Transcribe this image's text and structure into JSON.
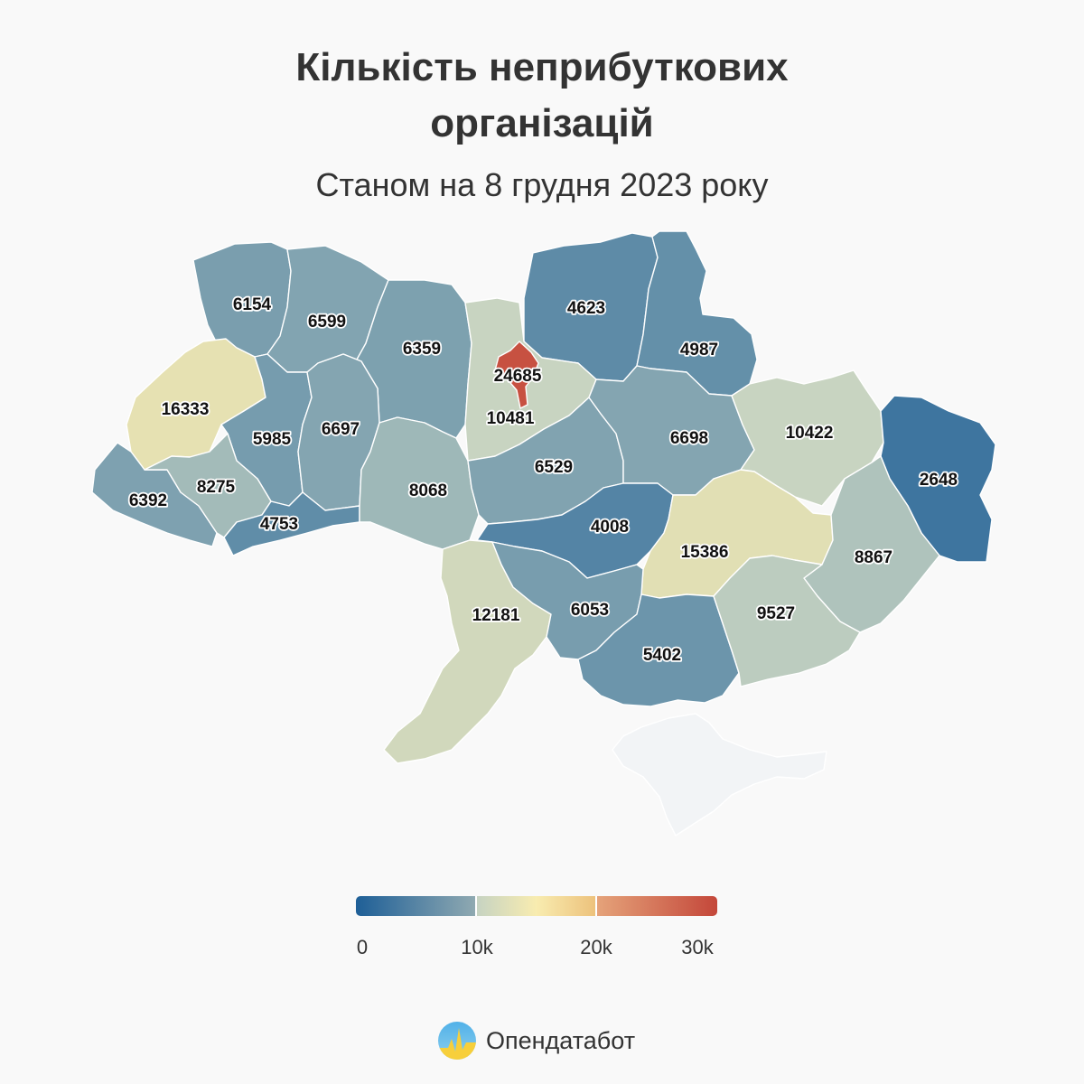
{
  "header": {
    "title_line1": "Кількість неприбуткових",
    "title_line2": "організацій",
    "subtitle": "Станом на 8 грудня 2023 року"
  },
  "legend": {
    "ticks": [
      "0",
      "10k",
      "20k",
      "30k"
    ],
    "tick_values": [
      0,
      10000,
      20000,
      30000
    ],
    "colors": {
      "low": "#1e5f97",
      "mid_low": "#c6d3c2",
      "mid": "#f8e9a8",
      "high": "#c4473a"
    }
  },
  "regions": [
    {
      "name": "volyn",
      "value": "6154"
    },
    {
      "name": "rivne",
      "value": "6599"
    },
    {
      "name": "zhytomyr",
      "value": "6359"
    },
    {
      "name": "kyiv-city",
      "value": "24685"
    },
    {
      "name": "kyiv-oblast",
      "value": "10481"
    },
    {
      "name": "chernihiv",
      "value": "4623"
    },
    {
      "name": "sumy",
      "value": "4987"
    },
    {
      "name": "lviv",
      "value": "16333"
    },
    {
      "name": "ternopil",
      "value": "5985"
    },
    {
      "name": "khmelnytskyi",
      "value": "6697"
    },
    {
      "name": "zakarpattia",
      "value": "6392"
    },
    {
      "name": "ivano-frankivsk",
      "value": "8275"
    },
    {
      "name": "chernivtsi",
      "value": "4753"
    },
    {
      "name": "vinnytsia",
      "value": "8068"
    },
    {
      "name": "cherkasy",
      "value": "6529"
    },
    {
      "name": "poltava",
      "value": "6698"
    },
    {
      "name": "kharkiv",
      "value": "10422"
    },
    {
      "name": "luhansk",
      "value": "2648"
    },
    {
      "name": "kirovohrad",
      "value": "4008"
    },
    {
      "name": "dnipropetrovsk",
      "value": "15386"
    },
    {
      "name": "donetsk",
      "value": "8867"
    },
    {
      "name": "odesa",
      "value": "12181"
    },
    {
      "name": "mykolaiv",
      "value": "6053"
    },
    {
      "name": "kherson",
      "value": "5402"
    },
    {
      "name": "zaporizhzhia",
      "value": "9527"
    },
    {
      "name": "crimea",
      "value": ""
    }
  ],
  "footer": {
    "brand_name": "Опендатабот"
  }
}
